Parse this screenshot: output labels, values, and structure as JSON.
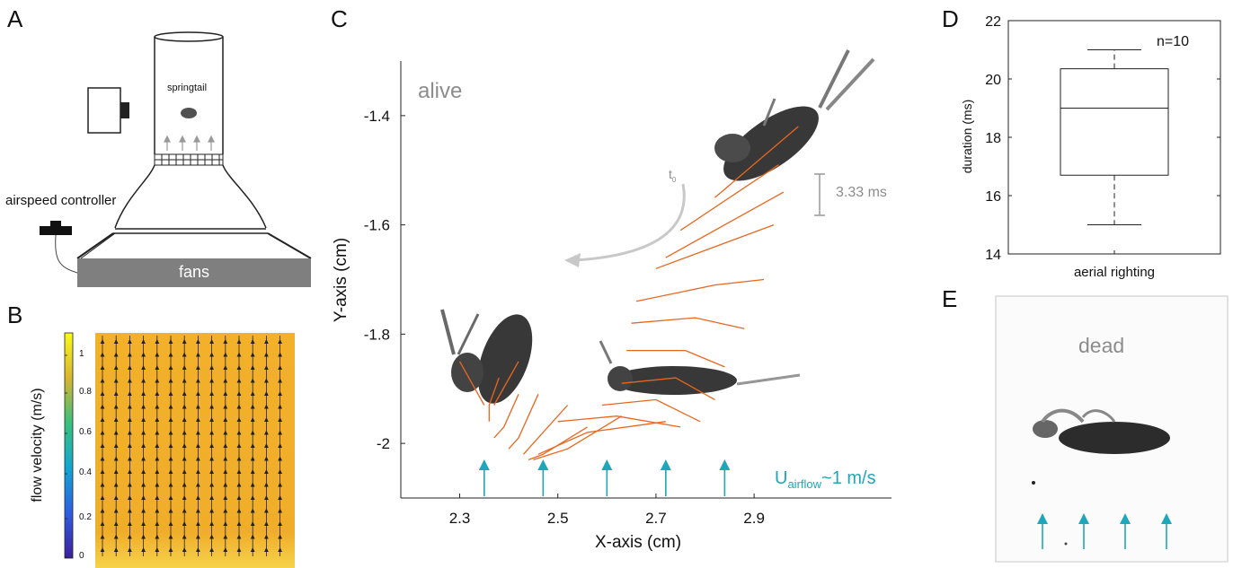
{
  "panels": {
    "A": {
      "label": "A",
      "springtail_label": "springtail",
      "controller_label": "airspeed controller",
      "fans_label": "fans"
    },
    "B": {
      "label": "B",
      "colorbar_title": "flow velocity (m/s)",
      "colorbar_ticks": [
        "0",
        "0.2",
        "0.4",
        "0.6",
        "0.8",
        "1"
      ],
      "field_color": "#f0ad2a"
    },
    "C": {
      "label": "C",
      "state_label": "alive",
      "t0_label": "t",
      "t0_sub": "0",
      "interval_label": "3.33 ms",
      "airflow_prefix": "U",
      "airflow_sub": "airflow",
      "airflow_suffix": "~1 m/s",
      "trace_color": "#e8661e",
      "airflow_color": "#1ea7b8"
    },
    "D": {
      "label": "D",
      "n_label": "n=10"
    },
    "E": {
      "label": "E",
      "state_label": "dead"
    }
  },
  "chart_data": [
    {
      "type": "line",
      "panel": "C",
      "xlabel": "X-axis (cm)",
      "ylabel": "Y-axis (cm)",
      "xticks": [
        "2.3",
        "2.5",
        "2.7",
        "2.9"
      ],
      "yticks": [
        "-1.4",
        "-1.6",
        "-1.8",
        "-2"
      ],
      "xlim": [
        2.18,
        3.18
      ],
      "ylim": [
        -2.1,
        -1.3
      ],
      "grid": false,
      "series": [
        {
          "segments": [
            [
              [
                2.99,
                -1.42
              ],
              [
                2.82,
                -1.55
              ]
            ],
            [
              [
                2.95,
                -1.49
              ],
              [
                2.75,
                -1.61
              ]
            ],
            [
              [
                2.96,
                -1.54
              ],
              [
                2.72,
                -1.66
              ]
            ],
            [
              [
                2.94,
                -1.6
              ],
              [
                2.82,
                -1.64
              ],
              [
                2.7,
                -1.68
              ]
            ],
            [
              [
                2.92,
                -1.7
              ],
              [
                2.82,
                -1.71
              ],
              [
                2.66,
                -1.74
              ]
            ],
            [
              [
                2.88,
                -1.79
              ],
              [
                2.78,
                -1.77
              ],
              [
                2.65,
                -1.78
              ]
            ],
            [
              [
                2.84,
                -1.86
              ],
              [
                2.76,
                -1.83
              ],
              [
                2.64,
                -1.83
              ]
            ],
            [
              [
                2.82,
                -1.92
              ],
              [
                2.74,
                -1.88
              ],
              [
                2.63,
                -1.89
              ]
            ],
            [
              [
                2.79,
                -1.96
              ],
              [
                2.7,
                -1.92
              ],
              [
                2.59,
                -1.93
              ]
            ],
            [
              [
                2.75,
                -1.97
              ],
              [
                2.62,
                -1.95
              ],
              [
                2.5,
                -1.96
              ]
            ],
            [
              [
                2.72,
                -1.96
              ],
              [
                2.56,
                -1.98
              ],
              [
                2.46,
                -2.02
              ]
            ],
            [
              [
                2.63,
                -1.95
              ],
              [
                2.52,
                -2.01
              ],
              [
                2.45,
                -2.03
              ]
            ],
            [
              [
                2.56,
                -1.97
              ],
              [
                2.47,
                -2.02
              ],
              [
                2.44,
                -2.03
              ]
            ],
            [
              [
                2.52,
                -1.93
              ],
              [
                2.45,
                -2.0
              ],
              [
                2.43,
                -2.02
              ]
            ],
            [
              [
                2.46,
                -1.91
              ],
              [
                2.42,
                -1.99
              ],
              [
                2.4,
                -2.01
              ]
            ],
            [
              [
                2.42,
                -1.91
              ],
              [
                2.39,
                -1.97
              ],
              [
                2.37,
                -1.99
              ]
            ],
            [
              [
                2.38,
                -1.88
              ],
              [
                2.36,
                -1.93
              ],
              [
                2.36,
                -1.96
              ]
            ],
            [
              [
                2.42,
                -1.85
              ],
              [
                2.37,
                -1.93
              ]
            ],
            [
              [
                2.3,
                -1.85
              ],
              [
                2.35,
                -1.93
              ]
            ]
          ]
        }
      ],
      "airflow_arrow_x": [
        2.35,
        2.47,
        2.6,
        2.72,
        2.84
      ]
    },
    {
      "type": "box",
      "panel": "D",
      "categories": [
        "aerial righting"
      ],
      "ylabel": "duration (ms)",
      "yticks": [
        "14",
        "16",
        "18",
        "20",
        "22"
      ],
      "ylim": [
        14,
        22
      ],
      "box": {
        "min": 15,
        "q1": 16.7,
        "median": 19,
        "q3": 20.35,
        "max": 21
      }
    }
  ]
}
